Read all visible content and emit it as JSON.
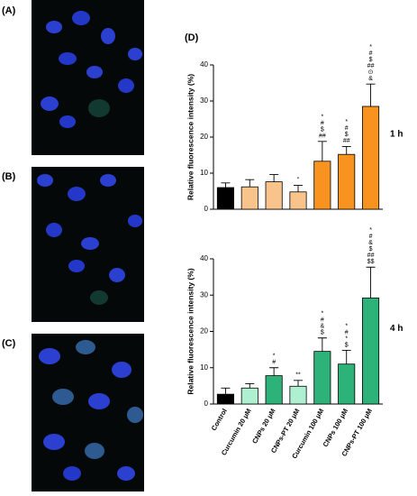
{
  "panel_labels": [
    "(A)",
    "(B)",
    "(C)",
    "(D)"
  ],
  "chart_data": [
    {
      "type": "bar",
      "ylabel": "Relative fluorescence intensity (%)",
      "side_label": "1 h",
      "values": [
        6,
        6.2,
        7.6,
        4.8,
        13.3,
        15.2,
        28.5
      ],
      "errors": [
        1.3,
        2,
        2,
        1.8,
        5.5,
        2.2,
        6.2
      ],
      "colors": [
        "#000000",
        "#f9c48c",
        "#f9c48c",
        "#f9c48c",
        "#f7931e",
        "#f7931e",
        "#f7931e"
      ],
      "annotations": [
        [],
        [],
        [],
        [
          "\""
        ],
        [
          "*",
          "#",
          "$",
          "##"
        ],
        [
          "*",
          "#",
          "$",
          "##"
        ],
        [
          "*",
          "#",
          "$",
          "##",
          "⊙",
          "&"
        ]
      ],
      "ylim": [
        0,
        40
      ],
      "yticks": [
        0,
        10,
        20,
        30,
        40
      ]
    },
    {
      "type": "bar",
      "ylabel": "Relative fluorescence intensity (%)",
      "side_label": "4 h",
      "categories": [
        "Control",
        "Curcumin 20 μM",
        "CNPs 20 μM",
        "CNPs-PT 20 μM",
        "Curcumin 100 μM",
        "CNPs 100 μM",
        "CNPs-PT 100 μM"
      ],
      "values": [
        2.7,
        4.4,
        7.8,
        4.9,
        14.5,
        11,
        29.2
      ],
      "errors": [
        1.7,
        1.2,
        2.2,
        1.6,
        3.7,
        3.8,
        8.5
      ],
      "colors": [
        "#000000",
        "#aef0d0",
        "#2db37a",
        "#aef0d0",
        "#2db37a",
        "#2db37a",
        "#2db37a"
      ],
      "annotations": [
        [],
        [],
        [
          "*",
          "#"
        ],
        [
          "**"
        ],
        [
          "*",
          "#",
          "&",
          "$"
        ],
        [
          "*",
          "#",
          "*",
          "$"
        ],
        [
          "*",
          "#",
          "&",
          "$",
          "##",
          "$$"
        ]
      ],
      "ylim": [
        0,
        40
      ],
      "yticks": [
        0,
        10,
        20,
        30,
        40
      ]
    }
  ]
}
